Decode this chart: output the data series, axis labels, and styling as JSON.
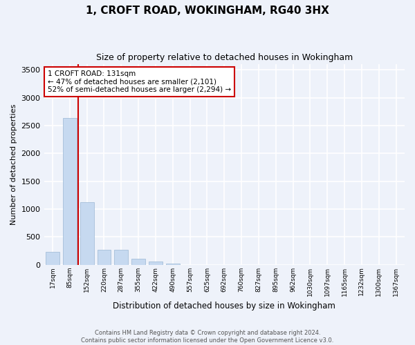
{
  "title": "1, CROFT ROAD, WOKINGHAM, RG40 3HX",
  "subtitle": "Size of property relative to detached houses in Wokingham",
  "xlabel": "Distribution of detached houses by size in Wokingham",
  "ylabel": "Number of detached properties",
  "bar_categories": [
    "17sqm",
    "85sqm",
    "152sqm",
    "220sqm",
    "287sqm",
    "355sqm",
    "422sqm",
    "490sqm",
    "557sqm",
    "625sqm",
    "692sqm",
    "760sqm",
    "827sqm",
    "895sqm",
    "962sqm",
    "1030sqm",
    "1097sqm",
    "1165sqm",
    "1232sqm",
    "1300sqm",
    "1367sqm"
  ],
  "bar_values": [
    230,
    2640,
    1130,
    270,
    270,
    105,
    55,
    20,
    0,
    0,
    0,
    0,
    0,
    0,
    0,
    0,
    0,
    0,
    0,
    0,
    0
  ],
  "bar_color": "#c6d9f0",
  "bar_edge_color": "#9ab7d3",
  "vline_x_index": 1.48,
  "vline_color": "#cc0000",
  "annotation_text": "1 CROFT ROAD: 131sqm\n← 47% of detached houses are smaller (2,101)\n52% of semi-detached houses are larger (2,294) →",
  "annotation_box_color": "#ffffff",
  "annotation_box_edge": "#cc0000",
  "ylim": [
    0,
    3600
  ],
  "yticks": [
    0,
    500,
    1000,
    1500,
    2000,
    2500,
    3000,
    3500
  ],
  "background_color": "#eef2fa",
  "grid_color": "#ffffff",
  "footer_line1": "Contains HM Land Registry data © Crown copyright and database right 2024.",
  "footer_line2": "Contains public sector information licensed under the Open Government Licence v3.0."
}
